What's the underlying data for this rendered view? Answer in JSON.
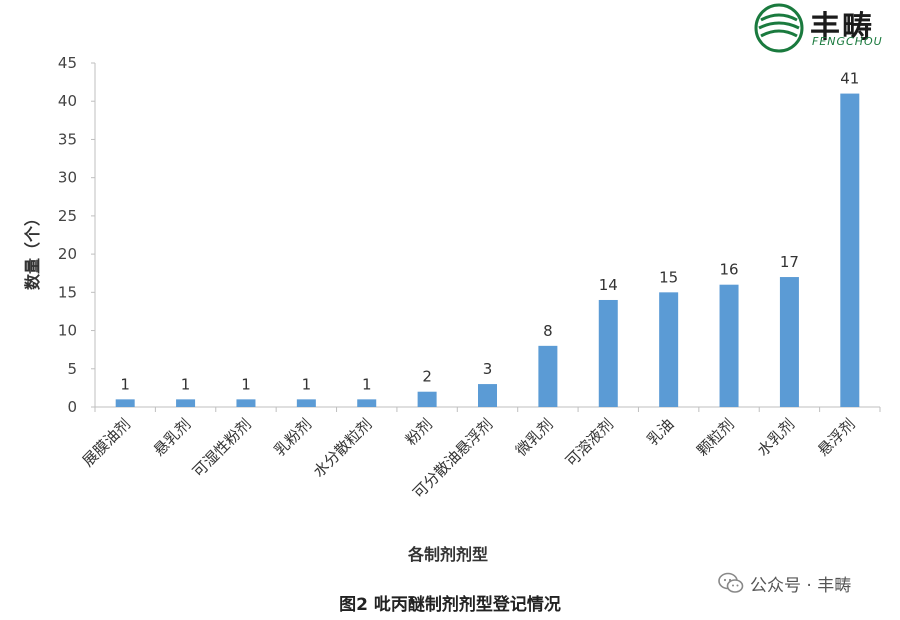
{
  "logo": {
    "cn": "丰畴",
    "en": "FENGCHOU"
  },
  "watermark": {
    "text": "公众号 · 丰畴"
  },
  "caption": "图2 吡丙醚制剂剂型登记情况",
  "colors": {
    "bar": "#5b9bd5",
    "axis": "#bfbfbf",
    "logo_green": "#1a7a3e"
  },
  "chart_data": {
    "type": "bar",
    "title": "",
    "xlabel": "各制剂剂型",
    "ylabel": "数量（个）",
    "ylim": [
      0,
      45
    ],
    "yticks": [
      0,
      5,
      10,
      15,
      20,
      25,
      30,
      35,
      40,
      45
    ],
    "grid": false,
    "categories": [
      "展膜油剂",
      "悬乳剂",
      "可湿性粉剂",
      "乳粉剂",
      "水分散粒剂",
      "粉剂",
      "可分散油悬浮剂",
      "微乳剂",
      "可溶液剂",
      "乳油",
      "颗粒剂",
      "水乳剂",
      "悬浮剂"
    ],
    "values": [
      1,
      1,
      1,
      1,
      1,
      2,
      3,
      8,
      14,
      15,
      16,
      17,
      41
    ],
    "data_labels": [
      "1",
      "1",
      "1",
      "1",
      "1",
      "2",
      "3",
      "8",
      "14",
      "15",
      "16",
      "17",
      "41"
    ]
  }
}
